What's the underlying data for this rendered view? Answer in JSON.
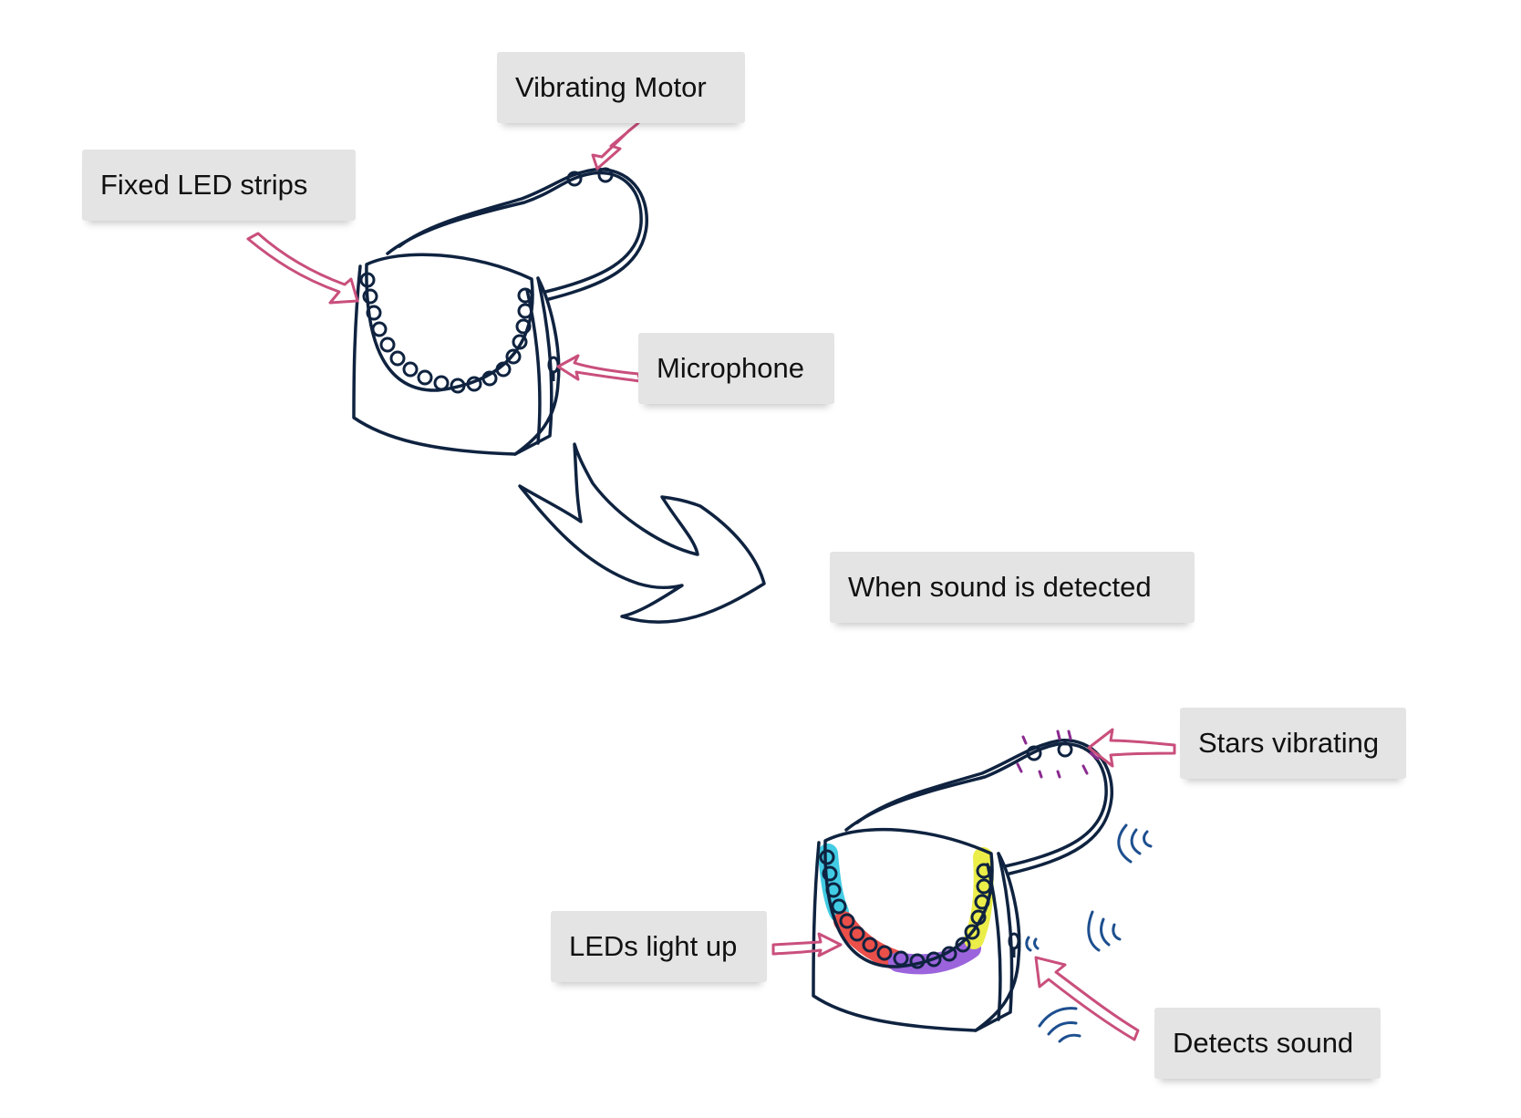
{
  "labels": {
    "vibrating_motor": "Vibrating Motor",
    "fixed_led_strips": "Fixed LED strips",
    "microphone": "Microphone",
    "when_sound_detected": "When sound is detected",
    "stars_vibrating": "Stars vibrating",
    "leds_light_up": "LEDs light up",
    "detects_sound": "Detects sound"
  },
  "colors": {
    "ink": "#0f2340",
    "callout_arrow": "#c94f7c",
    "label_bg": "#e4e4e4",
    "led_cyan": "#22c4e0",
    "led_yellow": "#e8ea2a",
    "led_red": "#e8312a",
    "led_purple": "#8a4ad6",
    "sound_wave": "#1d4f8f",
    "star_sparkle": "#8a2b8f"
  },
  "led_colors_lit": [
    "cyan",
    "red",
    "purple",
    "yellow"
  ]
}
